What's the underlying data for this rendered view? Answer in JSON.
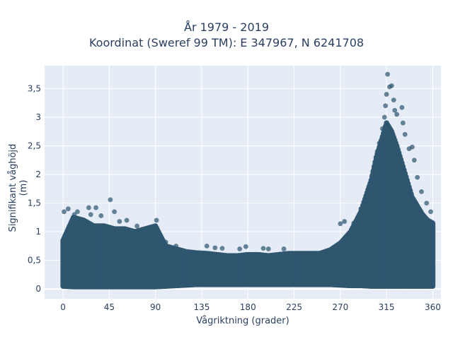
{
  "chart_data": {
    "type": "scatter",
    "title_line1": "År 1979 - 2019",
    "title_line2": "Koordinat (Sweref 99 TM): E 347967, N 6241708",
    "xlabel": "Vågriktning (grader)",
    "ylabel": "Signifikant våghöjd (m)",
    "xlim": [
      -18,
      368
    ],
    "ylim": [
      -0.17,
      3.9
    ],
    "x_ticks": [
      0,
      45,
      90,
      135,
      180,
      225,
      270,
      315,
      360
    ],
    "x_tick_labels": [
      "0",
      "45",
      "90",
      "135",
      "180",
      "225",
      "270",
      "315",
      "360"
    ],
    "y_ticks": [
      0,
      0.5,
      1,
      1.5,
      2,
      2.5,
      3,
      3.5
    ],
    "y_tick_labels": [
      "0",
      "0,5",
      "1",
      "1,5",
      "2",
      "2,5",
      "3",
      "3,5"
    ],
    "grid": true,
    "marker_color": "#2f5670",
    "background_color": "#e5ecf6",
    "envelope": {
      "x": [
        0,
        10,
        20,
        30,
        40,
        50,
        60,
        70,
        80,
        90,
        100,
        110,
        120,
        130,
        140,
        150,
        160,
        170,
        180,
        190,
        200,
        210,
        220,
        230,
        240,
        250,
        260,
        270,
        280,
        290,
        300,
        305,
        310,
        315,
        320,
        325,
        330,
        335,
        340,
        345,
        350,
        355,
        360
      ],
      "y_max": [
        0.85,
        1.25,
        1.2,
        1.1,
        1.1,
        1.05,
        1.05,
        1.0,
        1.05,
        1.1,
        0.75,
        0.7,
        0.65,
        0.63,
        0.62,
        0.6,
        0.58,
        0.58,
        0.6,
        0.6,
        0.58,
        0.6,
        0.62,
        0.62,
        0.62,
        0.62,
        0.68,
        0.8,
        1.0,
        1.35,
        1.9,
        2.3,
        2.6,
        2.9,
        2.75,
        2.5,
        2.2,
        1.9,
        1.6,
        1.45,
        1.3,
        1.2,
        1.15
      ],
      "y_min": [
        0.05,
        0.04,
        0.04,
        0.04,
        0.04,
        0.04,
        0.04,
        0.04,
        0.04,
        0.04,
        0.05,
        0.06,
        0.07,
        0.08,
        0.08,
        0.08,
        0.08,
        0.08,
        0.08,
        0.08,
        0.08,
        0.08,
        0.08,
        0.08,
        0.08,
        0.08,
        0.08,
        0.07,
        0.06,
        0.06,
        0.05,
        0.05,
        0.05,
        0.05,
        0.05,
        0.05,
        0.05,
        0.05,
        0.05,
        0.05,
        0.05,
        0.05,
        0.05
      ]
    },
    "outliers": [
      {
        "x": 1,
        "y": 1.35
      },
      {
        "x": 5,
        "y": 1.4
      },
      {
        "x": 11,
        "y": 1.3
      },
      {
        "x": 14,
        "y": 1.35
      },
      {
        "x": 25,
        "y": 1.42
      },
      {
        "x": 27,
        "y": 1.3
      },
      {
        "x": 32,
        "y": 1.42
      },
      {
        "x": 37,
        "y": 1.28
      },
      {
        "x": 46,
        "y": 1.56
      },
      {
        "x": 50,
        "y": 1.35
      },
      {
        "x": 55,
        "y": 1.18
      },
      {
        "x": 62,
        "y": 1.2
      },
      {
        "x": 72,
        "y": 1.1
      },
      {
        "x": 91,
        "y": 1.2
      },
      {
        "x": 100,
        "y": 0.82
      },
      {
        "x": 110,
        "y": 0.75
      },
      {
        "x": 140,
        "y": 0.75
      },
      {
        "x": 148,
        "y": 0.72
      },
      {
        "x": 155,
        "y": 0.71
      },
      {
        "x": 172,
        "y": 0.7
      },
      {
        "x": 178,
        "y": 0.74
      },
      {
        "x": 195,
        "y": 0.71
      },
      {
        "x": 200,
        "y": 0.7
      },
      {
        "x": 215,
        "y": 0.7
      },
      {
        "x": 270,
        "y": 1.14
      },
      {
        "x": 274,
        "y": 1.18
      },
      {
        "x": 283,
        "y": 1.15
      },
      {
        "x": 290,
        "y": 1.4
      },
      {
        "x": 294,
        "y": 1.55
      },
      {
        "x": 298,
        "y": 1.75
      },
      {
        "x": 302,
        "y": 1.9
      },
      {
        "x": 306,
        "y": 2.4
      },
      {
        "x": 308,
        "y": 2.55
      },
      {
        "x": 311,
        "y": 2.8
      },
      {
        "x": 313,
        "y": 3.0
      },
      {
        "x": 314,
        "y": 3.2
      },
      {
        "x": 315,
        "y": 3.4
      },
      {
        "x": 316,
        "y": 3.75
      },
      {
        "x": 318,
        "y": 3.53
      },
      {
        "x": 320,
        "y": 3.55
      },
      {
        "x": 322,
        "y": 3.3
      },
      {
        "x": 323,
        "y": 3.12
      },
      {
        "x": 325,
        "y": 3.05
      },
      {
        "x": 330,
        "y": 3.17
      },
      {
        "x": 331,
        "y": 2.9
      },
      {
        "x": 333,
        "y": 2.7
      },
      {
        "x": 337,
        "y": 2.45
      },
      {
        "x": 340,
        "y": 2.48
      },
      {
        "x": 342,
        "y": 2.25
      },
      {
        "x": 345,
        "y": 1.95
      },
      {
        "x": 349,
        "y": 1.7
      },
      {
        "x": 354,
        "y": 1.5
      },
      {
        "x": 358,
        "y": 1.35
      }
    ]
  }
}
